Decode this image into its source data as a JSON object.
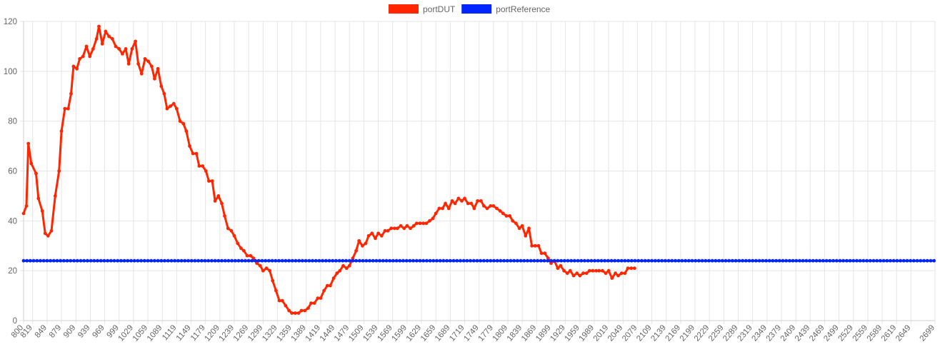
{
  "colors": {
    "grid": "#e5e5e5",
    "axis": "#cfcfcf",
    "text": "#666666"
  },
  "chart_data": {
    "type": "line",
    "legend_position": "top-center",
    "grid": true,
    "title": "",
    "xlabel": "",
    "ylabel": "",
    "ylim": [
      0,
      120
    ],
    "yticks": [
      0,
      20,
      40,
      60,
      80,
      100,
      120
    ],
    "xlim": [
      800,
      2699
    ],
    "xticks": [
      800,
      819,
      849,
      879,
      909,
      939,
      969,
      999,
      1029,
      1059,
      1089,
      1119,
      1149,
      1179,
      1209,
      1239,
      1269,
      1299,
      1329,
      1359,
      1389,
      1419,
      1449,
      1479,
      1509,
      1539,
      1569,
      1599,
      1629,
      1659,
      1689,
      1719,
      1749,
      1779,
      1809,
      1839,
      1869,
      1899,
      1929,
      1959,
      1989,
      2019,
      2049,
      2079,
      2109,
      2139,
      2169,
      2199,
      2229,
      2259,
      2289,
      2319,
      2349,
      2379,
      2409,
      2439,
      2469,
      2499,
      2529,
      2559,
      2589,
      2619,
      2649,
      2699
    ],
    "series": [
      {
        "name": "portDUT",
        "color": "#ff2600",
        "points": [
          [
            800,
            43
          ],
          [
            806,
            46
          ],
          [
            810,
            71
          ],
          [
            816,
            63
          ],
          [
            826,
            59
          ],
          [
            831,
            49
          ],
          [
            839,
            44
          ],
          [
            845,
            35
          ],
          [
            851,
            34
          ],
          [
            858,
            36
          ],
          [
            866,
            50
          ],
          [
            874,
            60
          ],
          [
            879,
            76
          ],
          [
            886,
            85
          ],
          [
            893,
            85
          ],
          [
            899,
            91
          ],
          [
            904,
            102
          ],
          [
            911,
            101
          ],
          [
            917,
            105
          ],
          [
            924,
            106
          ],
          [
            931,
            110
          ],
          [
            938,
            106
          ],
          [
            945,
            109
          ],
          [
            952,
            113
          ],
          [
            957,
            118
          ],
          [
            964,
            111
          ],
          [
            971,
            116
          ],
          [
            978,
            114
          ],
          [
            985,
            113
          ],
          [
            992,
            110
          ],
          [
            999,
            109
          ],
          [
            1006,
            107
          ],
          [
            1013,
            109
          ],
          [
            1019,
            103
          ],
          [
            1026,
            109
          ],
          [
            1033,
            112
          ],
          [
            1039,
            103
          ],
          [
            1046,
            99
          ],
          [
            1053,
            105
          ],
          [
            1060,
            104
          ],
          [
            1067,
            102
          ],
          [
            1073,
            97
          ],
          [
            1080,
            101
          ],
          [
            1087,
            94
          ],
          [
            1093,
            91
          ],
          [
            1099,
            85
          ],
          [
            1106,
            86
          ],
          [
            1113,
            87
          ],
          [
            1119,
            85
          ],
          [
            1126,
            80
          ],
          [
            1133,
            79
          ],
          [
            1139,
            76
          ],
          [
            1146,
            70
          ],
          [
            1153,
            67
          ],
          [
            1160,
            67
          ],
          [
            1166,
            62
          ],
          [
            1173,
            62
          ],
          [
            1180,
            60
          ],
          [
            1186,
            56
          ],
          [
            1193,
            56
          ],
          [
            1199,
            48
          ],
          [
            1206,
            50
          ],
          [
            1213,
            47
          ],
          [
            1219,
            42
          ],
          [
            1226,
            37
          ],
          [
            1233,
            36
          ],
          [
            1239,
            34
          ],
          [
            1246,
            31
          ],
          [
            1253,
            29
          ],
          [
            1259,
            28
          ],
          [
            1266,
            26
          ],
          [
            1273,
            26
          ],
          [
            1279,
            25
          ],
          [
            1286,
            23
          ],
          [
            1293,
            22
          ],
          [
            1299,
            20
          ],
          [
            1306,
            21
          ],
          [
            1313,
            20
          ],
          [
            1319,
            16
          ],
          [
            1326,
            12
          ],
          [
            1333,
            8
          ],
          [
            1339,
            8
          ],
          [
            1346,
            6
          ],
          [
            1353,
            4
          ],
          [
            1359,
            3
          ],
          [
            1366,
            3
          ],
          [
            1373,
            3
          ],
          [
            1379,
            4
          ],
          [
            1386,
            4
          ],
          [
            1393,
            5
          ],
          [
            1399,
            7
          ],
          [
            1406,
            7
          ],
          [
            1413,
            9
          ],
          [
            1419,
            9
          ],
          [
            1426,
            12
          ],
          [
            1433,
            14
          ],
          [
            1439,
            14
          ],
          [
            1446,
            17
          ],
          [
            1453,
            19
          ],
          [
            1459,
            20
          ],
          [
            1466,
            22
          ],
          [
            1473,
            21
          ],
          [
            1479,
            22
          ],
          [
            1486,
            25
          ],
          [
            1493,
            28
          ],
          [
            1499,
            32
          ],
          [
            1506,
            30
          ],
          [
            1513,
            31
          ],
          [
            1519,
            34
          ],
          [
            1526,
            35
          ],
          [
            1533,
            33
          ],
          [
            1539,
            35
          ],
          [
            1546,
            34
          ],
          [
            1553,
            36
          ],
          [
            1559,
            36
          ],
          [
            1566,
            37
          ],
          [
            1573,
            37
          ],
          [
            1579,
            37
          ],
          [
            1586,
            38
          ],
          [
            1593,
            37
          ],
          [
            1599,
            38
          ],
          [
            1606,
            37
          ],
          [
            1613,
            38
          ],
          [
            1619,
            39
          ],
          [
            1626,
            39
          ],
          [
            1633,
            39
          ],
          [
            1639,
            39
          ],
          [
            1646,
            40
          ],
          [
            1653,
            41
          ],
          [
            1659,
            43
          ],
          [
            1666,
            45
          ],
          [
            1673,
            45
          ],
          [
            1679,
            47
          ],
          [
            1686,
            45
          ],
          [
            1693,
            48
          ],
          [
            1699,
            47
          ],
          [
            1706,
            49
          ],
          [
            1713,
            48
          ],
          [
            1719,
            49
          ],
          [
            1726,
            47
          ],
          [
            1733,
            47
          ],
          [
            1739,
            45
          ],
          [
            1746,
            48
          ],
          [
            1753,
            48
          ],
          [
            1759,
            46
          ],
          [
            1766,
            45
          ],
          [
            1773,
            46
          ],
          [
            1779,
            46
          ],
          [
            1786,
            45
          ],
          [
            1793,
            44
          ],
          [
            1799,
            43
          ],
          [
            1806,
            42
          ],
          [
            1813,
            42
          ],
          [
            1819,
            40
          ],
          [
            1826,
            39
          ],
          [
            1833,
            37
          ],
          [
            1839,
            38
          ],
          [
            1846,
            34
          ],
          [
            1853,
            37
          ],
          [
            1859,
            30
          ],
          [
            1866,
            30
          ],
          [
            1873,
            30
          ],
          [
            1879,
            27
          ],
          [
            1886,
            27
          ],
          [
            1893,
            25
          ],
          [
            1899,
            23
          ],
          [
            1906,
            24
          ],
          [
            1913,
            21
          ],
          [
            1919,
            22
          ],
          [
            1926,
            20
          ],
          [
            1933,
            19
          ],
          [
            1939,
            20
          ],
          [
            1946,
            18
          ],
          [
            1953,
            19
          ],
          [
            1959,
            18
          ],
          [
            1966,
            19
          ],
          [
            1973,
            19
          ],
          [
            1979,
            20
          ],
          [
            1986,
            20
          ],
          [
            1993,
            20
          ],
          [
            1999,
            20
          ],
          [
            2006,
            20
          ],
          [
            2013,
            19
          ],
          [
            2019,
            20
          ],
          [
            2026,
            17
          ],
          [
            2033,
            19
          ],
          [
            2039,
            18
          ],
          [
            2046,
            19
          ],
          [
            2053,
            19
          ],
          [
            2059,
            21
          ],
          [
            2066,
            21
          ],
          [
            2073,
            21
          ]
        ]
      },
      {
        "name": "portReference",
        "color": "#0026ff",
        "constant": 24
      }
    ]
  }
}
